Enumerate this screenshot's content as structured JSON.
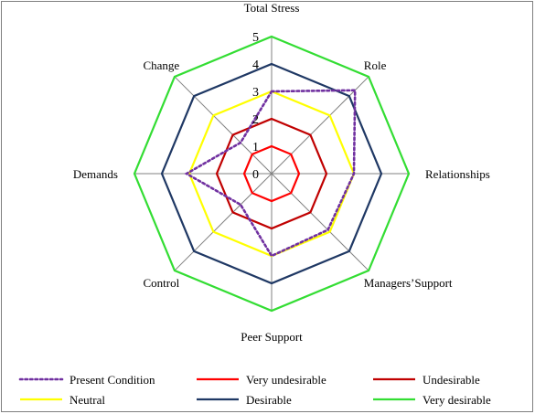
{
  "chart_data": {
    "type": "radar",
    "axes": [
      "Total Stress",
      "Role",
      "Relationships",
      "Managers’Support",
      "Peer Support",
      "Control",
      "Demands",
      "Change"
    ],
    "tick_labels": [
      "0",
      "1",
      "2",
      "3",
      "4",
      "5"
    ],
    "rmax": 5,
    "grid": true,
    "legend_position": "bottom",
    "series": [
      {
        "name": "Present Condition",
        "values": [
          3,
          4.3,
          3,
          2.9,
          3,
          1.6,
          3.1,
          1.6
        ],
        "color": "#7030a0",
        "dashed": true
      },
      {
        "name": "Very undesirable",
        "values": [
          1,
          1,
          1,
          1,
          1,
          1,
          1,
          1
        ],
        "color": "#ff0000",
        "dashed": false
      },
      {
        "name": "Undesirable",
        "values": [
          2,
          2,
          2,
          2,
          2,
          2,
          2,
          2
        ],
        "color": "#c00000",
        "dashed": false
      },
      {
        "name": "Neutral",
        "values": [
          3,
          3,
          3,
          3,
          3,
          3,
          3,
          3
        ],
        "color": "#ffff00",
        "dashed": false
      },
      {
        "name": "Desirable",
        "values": [
          4,
          4,
          4,
          4,
          4,
          4,
          4,
          4
        ],
        "color": "#1f3864",
        "dashed": false
      },
      {
        "name": "Very desirable",
        "values": [
          5,
          5,
          5,
          5,
          5,
          5,
          5,
          5
        ],
        "color": "#33dd33",
        "dashed": false
      }
    ]
  }
}
